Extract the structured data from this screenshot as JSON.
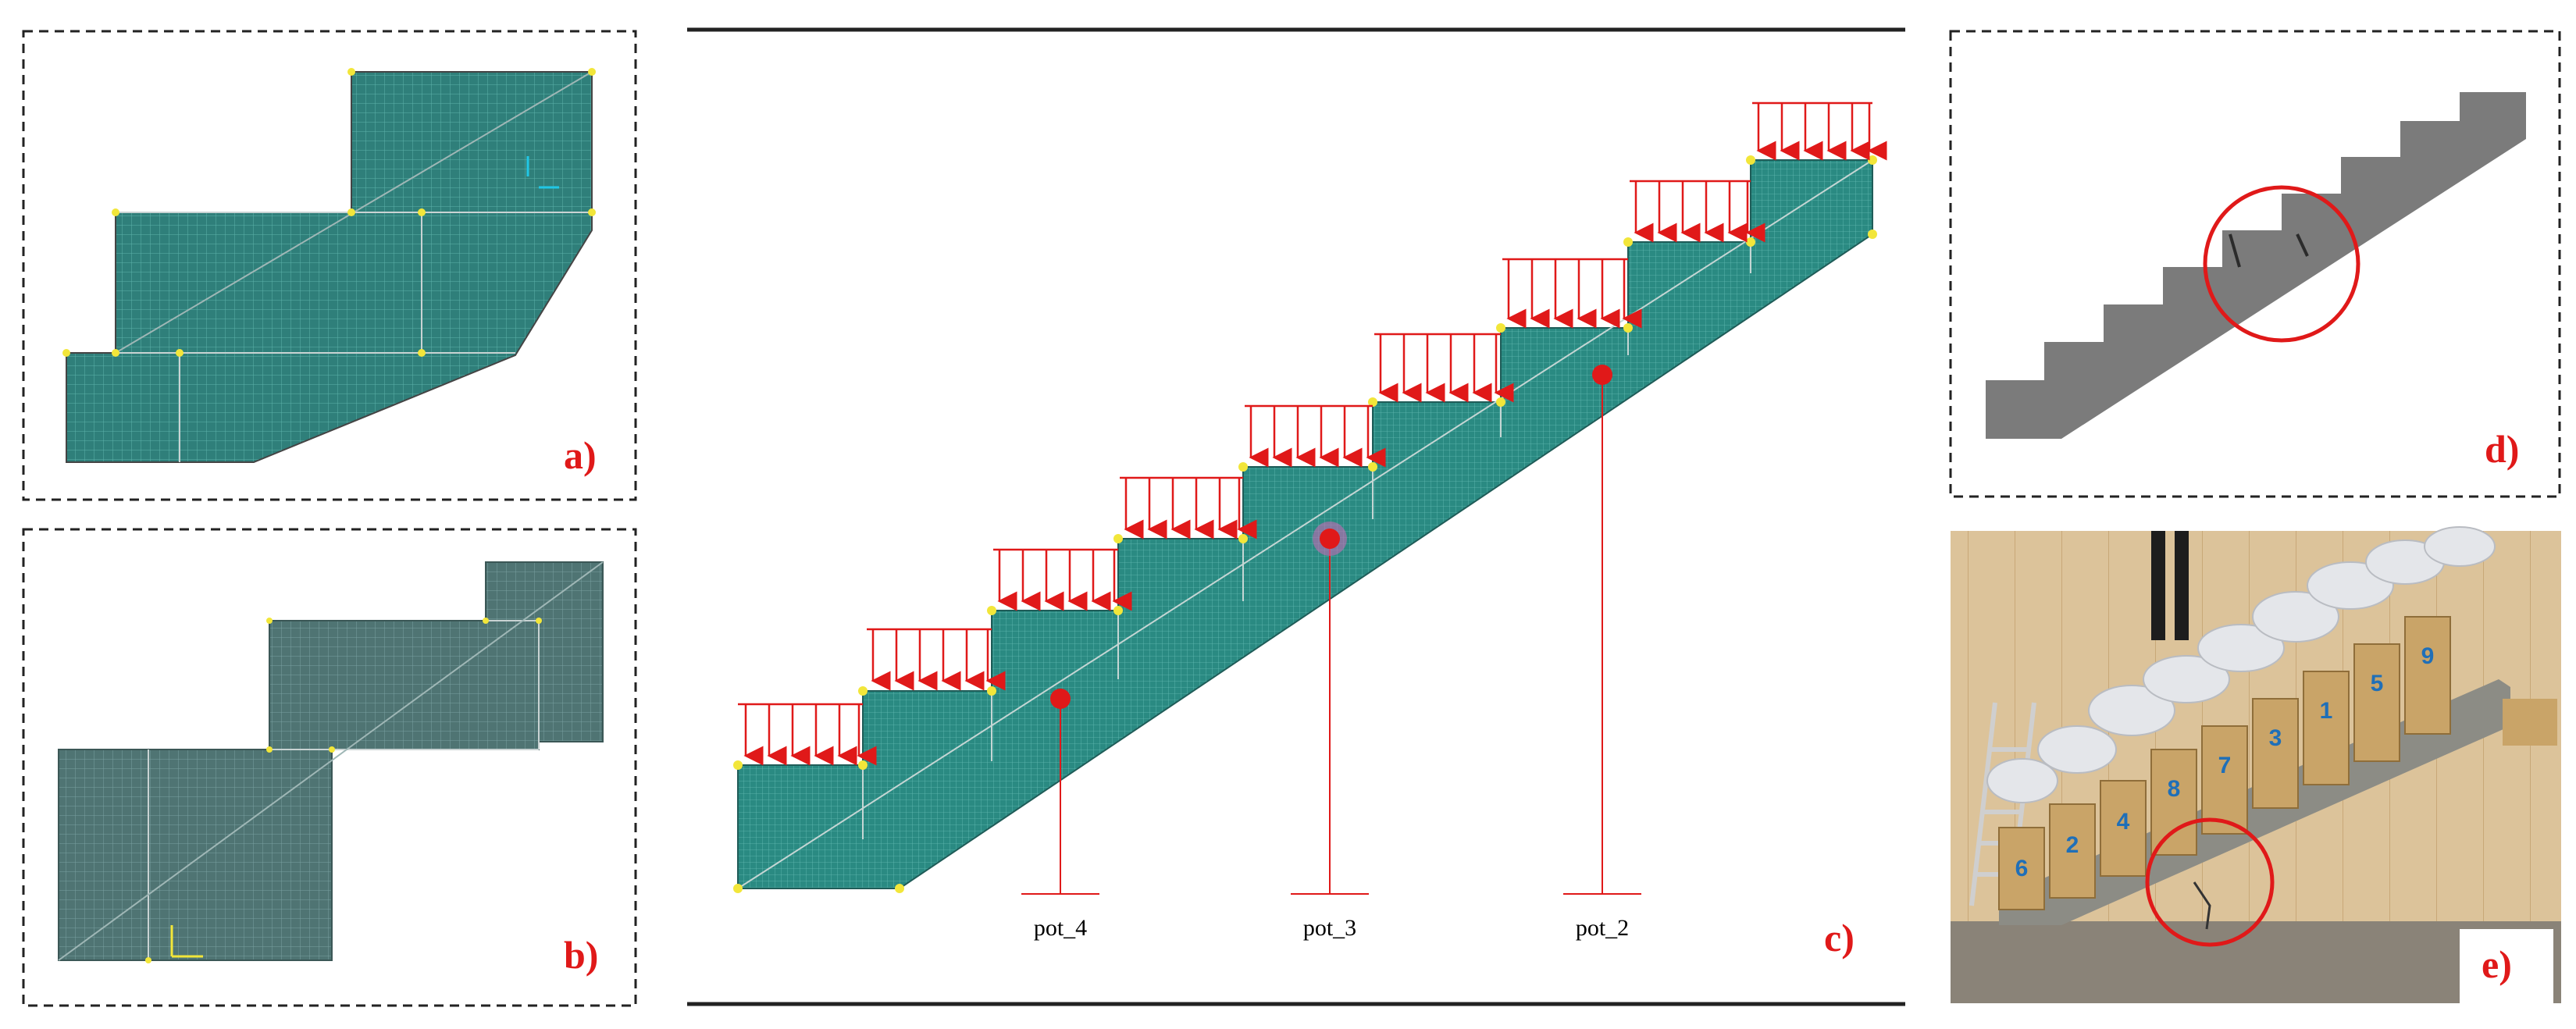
{
  "panels": {
    "a": {
      "label": "a)"
    },
    "b": {
      "label": "b)"
    },
    "c": {
      "label": "c)"
    },
    "d": {
      "label": "d)"
    },
    "e": {
      "label": "e)"
    }
  },
  "sensors": [
    {
      "label": "pot_4"
    },
    {
      "label": "pot_3"
    },
    {
      "label": "pot_2"
    }
  ],
  "photo_box_numbers": [
    "6",
    "2",
    "4",
    "8",
    "7",
    "3",
    "1",
    "5",
    "9"
  ],
  "colors": {
    "mesh": "#2f7f7a",
    "mesh_line": "#4fa59e",
    "load_arrow": "#e01919",
    "node": "#f2e63a",
    "panel_border": "#222222",
    "label": "#e01919",
    "stair_gray": "#7b7b7b",
    "plywood": "#c9a468",
    "wood_wall": "#d9bf93"
  }
}
